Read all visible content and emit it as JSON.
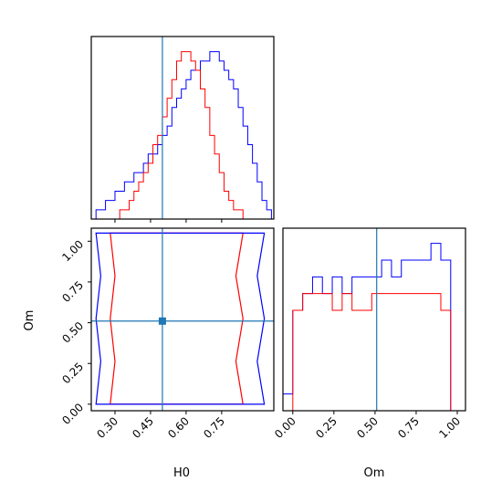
{
  "chart_data": {
    "type": "corner",
    "colors": {
      "series_a": "#ff0000",
      "series_b": "#0000ff",
      "truth": "#1f77b4"
    },
    "truth": {
      "H0": 0.5,
      "Om": 0.51
    },
    "panels": [
      {
        "id": "hist-h0",
        "type": "histogram",
        "xlim": [
          0.2,
          0.97
        ],
        "xticks": [
          0.3,
          0.45,
          0.6,
          0.75
        ],
        "bins": [
          0.2,
          0.22,
          0.24,
          0.26,
          0.28,
          0.3,
          0.32,
          0.34,
          0.36,
          0.38,
          0.4,
          0.42,
          0.44,
          0.46,
          0.48,
          0.5,
          0.52,
          0.54,
          0.56,
          0.58,
          0.6,
          0.62,
          0.64,
          0.66,
          0.68,
          0.7,
          0.72,
          0.74,
          0.76,
          0.78,
          0.8,
          0.82,
          0.84,
          0.86,
          0.88,
          0.9,
          0.92,
          0.94,
          0.96
        ],
        "series": [
          {
            "color_key": "series_b",
            "counts": [
              0,
              1,
              1,
              2,
              2,
              3,
              3,
              4,
              4,
              5,
              5,
              6,
              7,
              7,
              8,
              9,
              10,
              12,
              13,
              14,
              15,
              16,
              16,
              17,
              17,
              18,
              18,
              17,
              16,
              15,
              14,
              12,
              10,
              8,
              6,
              4,
              2,
              1
            ]
          },
          {
            "color_key": "series_a",
            "counts": [
              0,
              0,
              0,
              0,
              0,
              0,
              1,
              1,
              2,
              3,
              4,
              5,
              6,
              8,
              9,
              11,
              13,
              15,
              17,
              18,
              18,
              17,
              16,
              14,
              12,
              9,
              7,
              5,
              3,
              2,
              1,
              1,
              0,
              0,
              0,
              0,
              0,
              0
            ]
          }
        ]
      },
      {
        "id": "contour-h0-om",
        "type": "contour",
        "xlim": [
          0.2,
          0.97
        ],
        "ylim": [
          -0.04,
          1.08
        ],
        "xticks": [
          0.3,
          0.45,
          0.6,
          0.75
        ],
        "yticks": [
          0.0,
          0.25,
          0.5,
          0.75,
          1.0
        ],
        "contours": [
          {
            "color_key": "series_a",
            "x_range": [
              0.28,
              0.84
            ],
            "y_range": [
              0.0,
              1.05
            ]
          },
          {
            "color_key": "series_b",
            "x_range": [
              0.22,
              0.93
            ],
            "y_range": [
              0.0,
              1.05
            ]
          }
        ]
      },
      {
        "id": "hist-om",
        "type": "histogram",
        "xlim": [
          -0.06,
          1.05
        ],
        "xticks": [
          0.0,
          0.25,
          0.5,
          0.75,
          1.0
        ],
        "bins": [
          -0.06,
          0.0,
          0.06,
          0.12,
          0.18,
          0.24,
          0.3,
          0.36,
          0.42,
          0.48,
          0.54,
          0.6,
          0.66,
          0.72,
          0.78,
          0.84,
          0.9,
          0.96,
          1.02
        ],
        "series": [
          {
            "color_key": "series_b",
            "counts": [
              1,
              6,
              7,
              8,
              7,
              8,
              7,
              8,
              8,
              8,
              9,
              8,
              9,
              9,
              9,
              10,
              9,
              0
            ]
          },
          {
            "color_key": "series_a",
            "counts": [
              0,
              6,
              7,
              7,
              7,
              6,
              7,
              6,
              6,
              7,
              7,
              7,
              7,
              7,
              7,
              7,
              6,
              0
            ]
          }
        ]
      }
    ],
    "xlabels": [
      "H0",
      "Om"
    ],
    "ylabels": [
      "Om"
    ]
  }
}
